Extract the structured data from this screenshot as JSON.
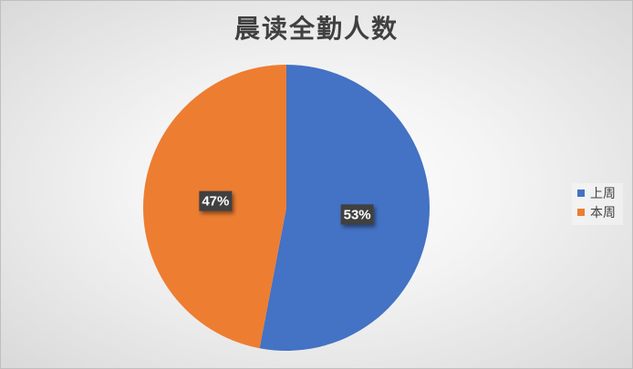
{
  "chart_data": {
    "type": "pie",
    "title": "晨读全勤人数",
    "categories": [
      "上周",
      "本周"
    ],
    "values": [
      53,
      47
    ],
    "data_labels": [
      "53%",
      "47%"
    ],
    "colors": [
      "#4472c4",
      "#ed7d31"
    ],
    "legend_position": "right"
  }
}
